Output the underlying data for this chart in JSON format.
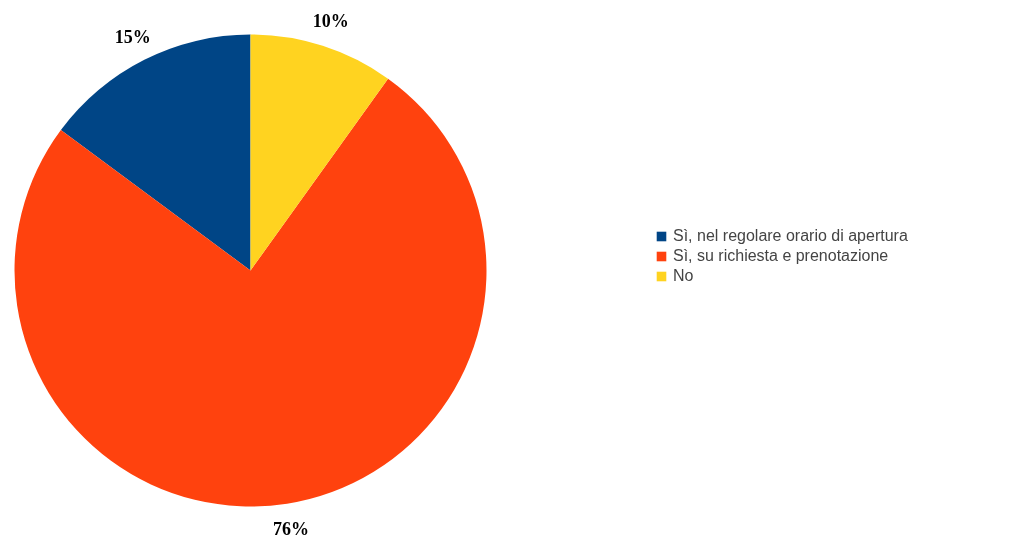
{
  "chart_data": {
    "type": "pie",
    "categories": [
      "Sì, nel regolare orario di apertura",
      "Sì, su richiesta e prenotazione",
      "No"
    ],
    "values": [
      15,
      76,
      10
    ],
    "colors": [
      "#004586",
      "#ff420e",
      "#ffd320"
    ],
    "value_labels": [
      "15%",
      "76%",
      "10%"
    ],
    "legend": "right"
  }
}
